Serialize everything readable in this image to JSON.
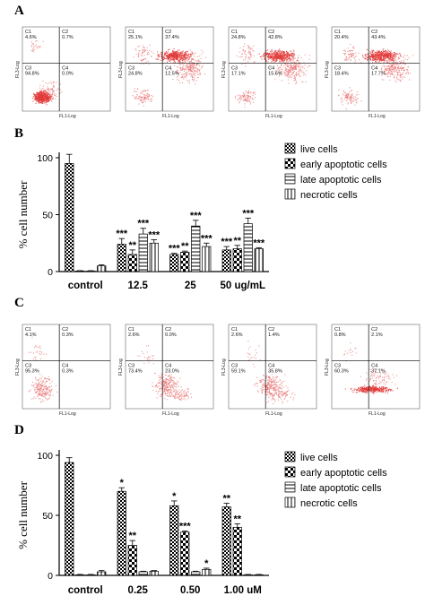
{
  "panels": {
    "a": "A",
    "b": "B",
    "c": "C",
    "d": "D"
  },
  "flow_axis": {
    "x_label": "FL1-Log",
    "y_label": "FL3-Log"
  },
  "flow_rows": [
    {
      "plots": [
        {
          "c1": "C1",
          "c1v": "4.6%",
          "c2": "C2",
          "c2v": "0.7%",
          "c3": "C3",
          "c3v": "94.8%",
          "c4": "C4",
          "c4v": "0.0%",
          "cloud": "live"
        },
        {
          "c1": "C1",
          "c1v": "25.1%",
          "c2": "C2",
          "c2v": "37.4%",
          "c3": "C3",
          "c3v": "24.8%",
          "c4": "C4",
          "c4v": "12.5%",
          "cloud": "late"
        },
        {
          "c1": "C1",
          "c1v": "24.8%",
          "c2": "C2",
          "c2v": "42.8%",
          "c3": "C3",
          "c3v": "17.1%",
          "c4": "C4",
          "c4v": "15.6%",
          "cloud": "late"
        },
        {
          "c1": "C1",
          "c1v": "20.4%",
          "c2": "C2",
          "c2v": "43.4%",
          "c3": "C3",
          "c3v": "18.4%",
          "c4": "C4",
          "c4v": "17.7%",
          "cloud": "late"
        }
      ]
    },
    {
      "plots": [
        {
          "c1": "C1",
          "c1v": "4.1%",
          "c2": "C2",
          "c2v": "0.3%",
          "c3": "C3",
          "c3v": "95.3%",
          "c4": "C4",
          "c4v": "0.3%",
          "cloud": "sparse-live"
        },
        {
          "c1": "C1",
          "c1v": "2.6%",
          "c2": "C2",
          "c2v": "0.0%",
          "c3": "C3",
          "c3v": "73.4%",
          "c4": "C4",
          "c4v": "23.0%",
          "cloud": "early"
        },
        {
          "c1": "C1",
          "c1v": "2.6%",
          "c2": "C2",
          "c2v": "1.4%",
          "c3": "C3",
          "c3v": "59.1%",
          "c4": "C4",
          "c4v": "35.8%",
          "cloud": "early"
        },
        {
          "c1": "C1",
          "c1v": "0.8%",
          "c2": "C2",
          "c2v": "2.1%",
          "c3": "C3",
          "c3v": "60.3%",
          "c4": "C4",
          "c4v": "37.1%",
          "cloud": "band"
        }
      ]
    }
  ],
  "chart_data": [
    {
      "type": "bar",
      "panel": "B",
      "ylabel": "% cell number",
      "ylim": [
        0,
        100
      ],
      "yticks": [
        0,
        50,
        100
      ],
      "categories": [
        "control",
        "12.5",
        "25",
        "50 ug/mL"
      ],
      "series": [
        {
          "name": "live cells",
          "values": [
            95,
            24,
            15,
            19
          ],
          "errors": [
            8,
            5,
            1,
            3
          ],
          "sig": [
            "",
            "***",
            "***",
            "***"
          ],
          "pattern": "checker"
        },
        {
          "name": "early apoptotic cells",
          "values": [
            0.5,
            15,
            17,
            20
          ],
          "errors": [
            0.3,
            4,
            1,
            3
          ],
          "sig": [
            "",
            "**",
            "**",
            "**"
          ],
          "pattern": "bigchecker"
        },
        {
          "name": "late apoptotic cells",
          "values": [
            0.5,
            33,
            40,
            42
          ],
          "errors": [
            0.3,
            5,
            5,
            5
          ],
          "sig": [
            "",
            "***",
            "***",
            "***"
          ],
          "pattern": "hlines"
        },
        {
          "name": "necrotic cells",
          "values": [
            5,
            25,
            22,
            20
          ],
          "errors": [
            1,
            3,
            3,
            1
          ],
          "sig": [
            "",
            "***",
            "***",
            "***"
          ],
          "pattern": "vlines"
        }
      ],
      "legend": "top-right",
      "grid": false
    },
    {
      "type": "bar",
      "panel": "D",
      "ylabel": "% cell number",
      "ylim": [
        0,
        100
      ],
      "yticks": [
        0,
        50,
        100
      ],
      "categories": [
        "control",
        "0.25",
        "0.50",
        "1.00 uM"
      ],
      "series": [
        {
          "name": "live cells",
          "values": [
            94,
            70,
            58,
            57
          ],
          "errors": [
            4,
            3,
            4,
            3
          ],
          "sig": [
            "",
            "*",
            "*",
            "**"
          ],
          "pattern": "checker"
        },
        {
          "name": "early apoptotic cells",
          "values": [
            0.5,
            25,
            36,
            40
          ],
          "errors": [
            0.3,
            4,
            1,
            3
          ],
          "sig": [
            "",
            "**",
            "***",
            "**"
          ],
          "pattern": "bigchecker"
        },
        {
          "name": "late apoptotic cells",
          "values": [
            0.5,
            3,
            3,
            0.5
          ],
          "errors": [
            0.3,
            0.5,
            0.5,
            0.3
          ],
          "sig": [
            "",
            "",
            "",
            ""
          ],
          "pattern": "hlines"
        },
        {
          "name": "necrotic cells",
          "values": [
            3,
            3.5,
            5,
            0.5
          ],
          "errors": [
            1,
            0.5,
            1,
            0.3
          ],
          "sig": [
            "",
            "",
            "*",
            ""
          ],
          "pattern": "vlines"
        }
      ],
      "legend": "top-right",
      "grid": false
    }
  ]
}
